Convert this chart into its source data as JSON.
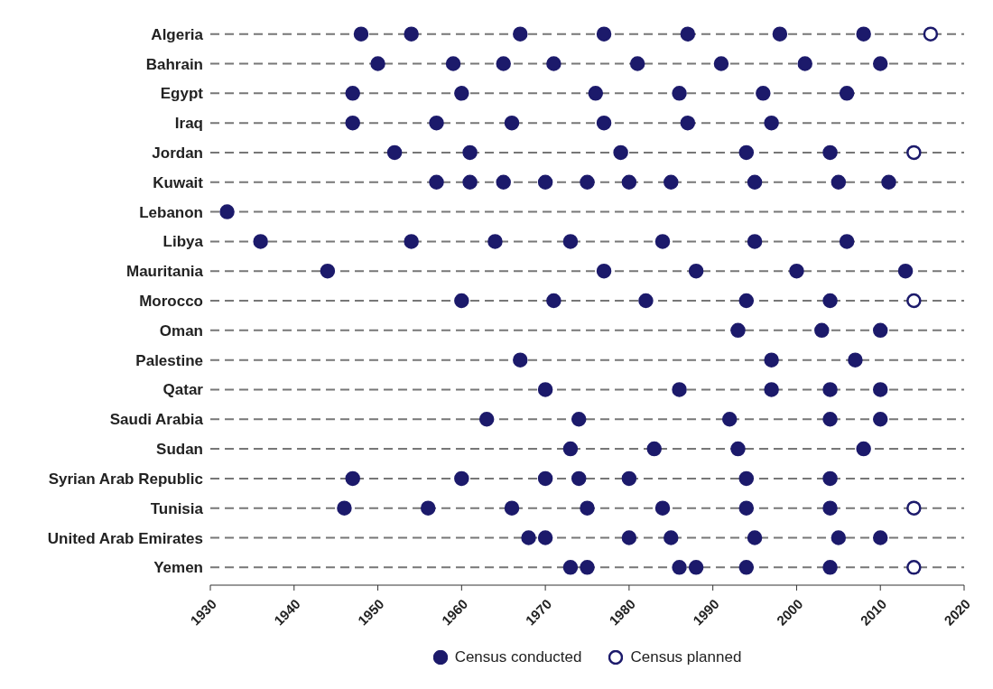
{
  "chart_data": {
    "type": "scatter",
    "orientation": "horizontal",
    "categories": [
      "Algeria",
      "Bahrain",
      "Egypt",
      "Iraq",
      "Jordan",
      "Kuwait",
      "Lebanon",
      "Libya",
      "Mauritania",
      "Morocco",
      "Oman",
      "Palestine",
      "Qatar",
      "Saudi Arabia",
      "Sudan",
      "Syrian Arab Republic",
      "Tunisia",
      "United Arab Emirates",
      "Yemen"
    ],
    "series": [
      {
        "name": "Census conducted",
        "color": "#1c1a6b",
        "x": [
          "Algeria",
          "Algeria",
          "Algeria",
          "Algeria",
          "Algeria",
          "Algeria",
          "Algeria",
          "Bahrain",
          "Bahrain",
          "Bahrain",
          "Bahrain",
          "Bahrain",
          "Bahrain",
          "Bahrain",
          "Bahrain",
          "Egypt",
          "Egypt",
          "Egypt",
          "Egypt",
          "Egypt",
          "Egypt",
          "Iraq",
          "Iraq",
          "Iraq",
          "Iraq",
          "Iraq",
          "Iraq",
          "Jordan",
          "Jordan",
          "Jordan",
          "Jordan",
          "Jordan",
          "Kuwait",
          "Kuwait",
          "Kuwait",
          "Kuwait",
          "Kuwait",
          "Kuwait",
          "Kuwait",
          "Kuwait",
          "Kuwait",
          "Kuwait",
          "Lebanon",
          "Libya",
          "Libya",
          "Libya",
          "Libya",
          "Libya",
          "Libya",
          "Libya",
          "Mauritania",
          "Mauritania",
          "Mauritania",
          "Mauritania",
          "Mauritania",
          "Morocco",
          "Morocco",
          "Morocco",
          "Morocco",
          "Morocco",
          "Oman",
          "Oman",
          "Oman",
          "Palestine",
          "Palestine",
          "Palestine",
          "Qatar",
          "Qatar",
          "Qatar",
          "Qatar",
          "Qatar",
          "Saudi Arabia",
          "Saudi Arabia",
          "Saudi Arabia",
          "Saudi Arabia",
          "Saudi Arabia",
          "Sudan",
          "Sudan",
          "Sudan",
          "Sudan",
          "Syrian Arab Republic",
          "Syrian Arab Republic",
          "Syrian Arab Republic",
          "Syrian Arab Republic",
          "Syrian Arab Republic",
          "Syrian Arab Republic",
          "Syrian Arab Republic",
          "Tunisia",
          "Tunisia",
          "Tunisia",
          "Tunisia",
          "Tunisia",
          "Tunisia",
          "Tunisia",
          "United Arab Emirates",
          "United Arab Emirates",
          "United Arab Emirates",
          "United Arab Emirates",
          "United Arab Emirates",
          "United Arab Emirates",
          "United Arab Emirates",
          "Yemen",
          "Yemen",
          "Yemen",
          "Yemen",
          "Yemen",
          "Yemen"
        ],
        "values": [
          1948,
          1954,
          1967,
          1977,
          1987,
          1998,
          2008,
          1950,
          1959,
          1965,
          1971,
          1981,
          1991,
          2001,
          2010,
          1947,
          1960,
          1976,
          1986,
          1996,
          2006,
          1947,
          1957,
          1966,
          1977,
          1987,
          1997,
          1952,
          1961,
          1979,
          1994,
          2004,
          1957,
          1961,
          1965,
          1970,
          1975,
          1980,
          1985,
          1995,
          2005,
          2011,
          1932,
          1936,
          1954,
          1964,
          1973,
          1984,
          1995,
          2006,
          1944,
          1977,
          1988,
          2000,
          2013,
          1960,
          1971,
          1982,
          1994,
          2004,
          1993,
          2003,
          2010,
          1967,
          1997,
          2007,
          1970,
          1986,
          1997,
          2004,
          2010,
          1963,
          1974,
          1992,
          2004,
          2010,
          1973,
          1983,
          1993,
          2008,
          1947,
          1960,
          1970,
          1974,
          1980,
          1994,
          2004,
          1946,
          1956,
          1966,
          1975,
          1984,
          1994,
          2004,
          1968,
          1970,
          1980,
          1985,
          1995,
          2005,
          2010,
          1973,
          1975,
          1986,
          1988,
          1994,
          2004
        ]
      },
      {
        "name": "Census planned",
        "color": "#1c1a6b",
        "x": [
          "Algeria",
          "Jordan",
          "Morocco",
          "Tunisia",
          "Yemen"
        ],
        "values": [
          2016,
          2014,
          2014,
          2014,
          2014
        ]
      }
    ],
    "xlim": [
      1930,
      2020
    ],
    "xticks": [
      1930,
      1940,
      1950,
      1960,
      1970,
      1980,
      1990,
      2000,
      2010,
      2020
    ],
    "grid": "y",
    "legend": "bottom",
    "marker": "circle"
  }
}
